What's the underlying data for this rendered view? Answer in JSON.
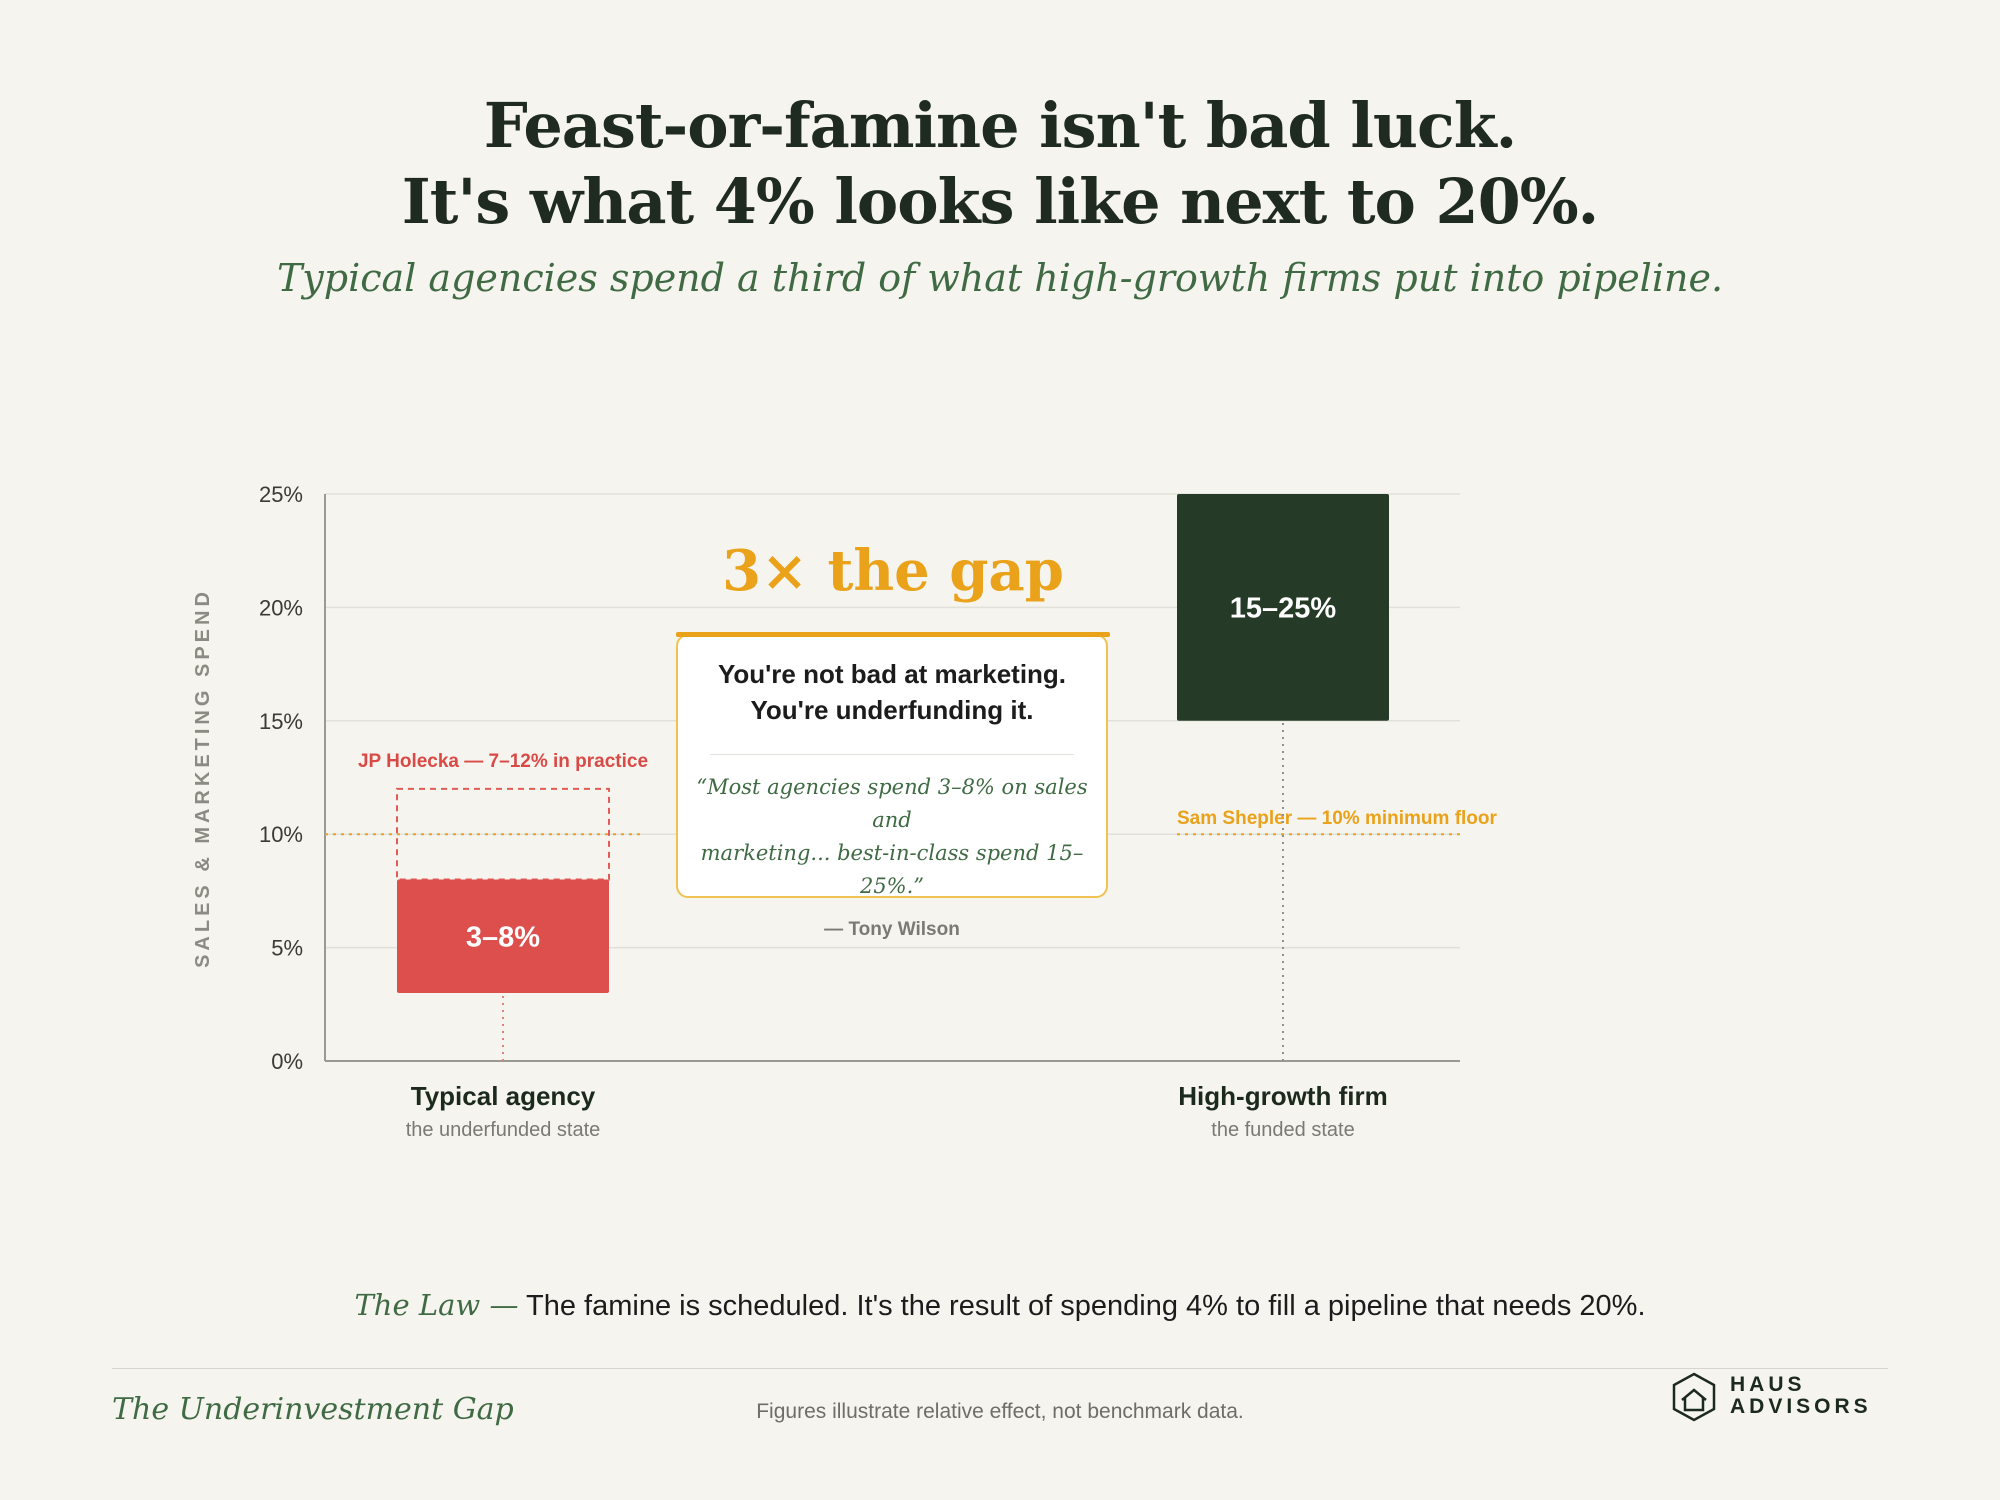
{
  "header": {
    "title_line1": "Feast-or-famine isn't bad luck.",
    "title_line2": "It's what 4% looks like next to 20%.",
    "subtitle": "Typical agencies spend a third of what high-growth firms put into pipeline."
  },
  "chart_data": {
    "type": "bar",
    "ylabel": "SALES & MARKETING SPEND",
    "ylim": [
      0,
      25
    ],
    "yticks": [
      0,
      5,
      10,
      15,
      20,
      25
    ],
    "ytick_labels": [
      "0%",
      "5%",
      "10%",
      "15%",
      "20%",
      "25%"
    ],
    "grid": true,
    "categories": [
      {
        "name": "Typical agency",
        "sublabel": "the underfunded state",
        "low": 3,
        "high": 8,
        "label": "3–8%",
        "color": "#dd4f4c",
        "extended_range": {
          "low": 8,
          "high": 12,
          "label": "JP Holecka — 7–12% in practice"
        }
      },
      {
        "name": "High-growth firm",
        "sublabel": "the funded state",
        "low": 15,
        "high": 25,
        "label": "15–25%",
        "color": "#253a27"
      }
    ],
    "reference_line": {
      "value": 10,
      "label": "Sam Shepler — 10% minimum floor",
      "color": "#e9a21a"
    },
    "annotation": "3× the gap"
  },
  "callout": {
    "headline_line1": "You're not bad at marketing.",
    "headline_line2": "You're underfunding it.",
    "quote_line1": "“Most agencies spend 3–8% on sales and",
    "quote_line2": "marketing... best-in-class spend 15–25%.”",
    "attribution": "— Tony Wilson"
  },
  "law": {
    "label": "The Law —",
    "text": "The famine is scheduled. It's the result of spending 4% to fill a pipeline that needs 20%."
  },
  "footer": {
    "title": "The Underinvestment Gap",
    "note": "Figures illustrate relative effect, not benchmark data.",
    "brand_line1": "HAUS",
    "brand_line2": "ADVISORS",
    "brand_icon": "hexagon-house-icon"
  }
}
